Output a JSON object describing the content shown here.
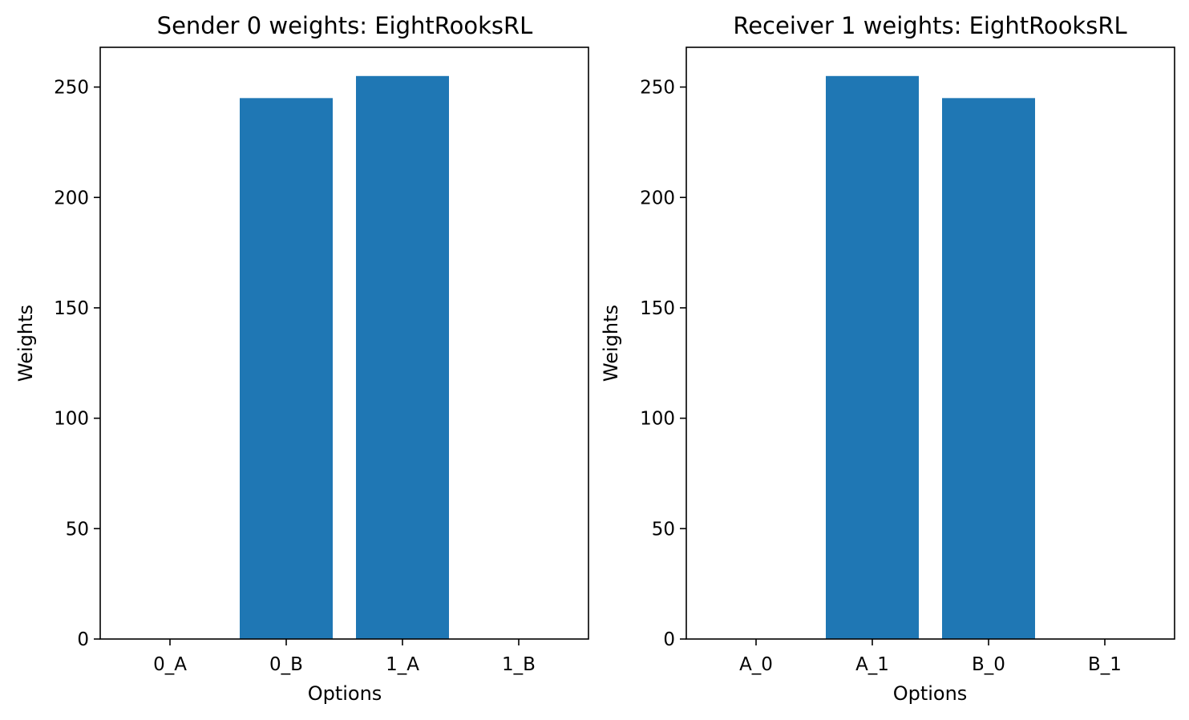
{
  "chart_data": [
    {
      "type": "bar",
      "title": "Sender 0 weights: EightRooksRL",
      "xlabel": "Options",
      "ylabel": "Weights",
      "categories": [
        "0_A",
        "0_B",
        "1_A",
        "1_B"
      ],
      "values": [
        0,
        245,
        255,
        0
      ],
      "ylim": [
        0,
        268
      ],
      "yticks": [
        0,
        50,
        100,
        150,
        200,
        250
      ],
      "bar_color": "#1f77b4",
      "grid": false
    },
    {
      "type": "bar",
      "title": "Receiver 1 weights: EightRooksRL",
      "xlabel": "Options",
      "ylabel": "Weights",
      "categories": [
        "A_0",
        "A_1",
        "B_0",
        "B_1"
      ],
      "values": [
        0,
        255,
        245,
        0
      ],
      "ylim": [
        0,
        268
      ],
      "yticks": [
        0,
        50,
        100,
        150,
        200,
        250
      ],
      "bar_color": "#1f77b4",
      "grid": false
    }
  ]
}
